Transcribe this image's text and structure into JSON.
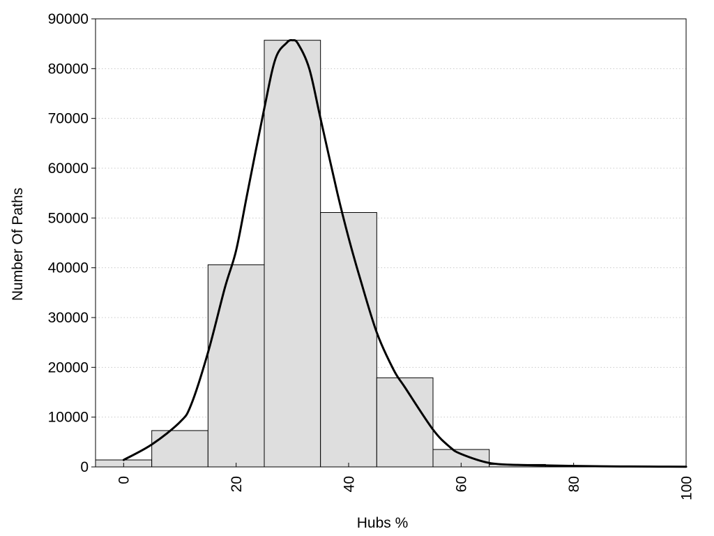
{
  "chart_data": {
    "type": "bar",
    "title": "",
    "xlabel": "Hubs %",
    "ylabel": "Number Of Paths",
    "xlim": [
      -5,
      100
    ],
    "ylim": [
      0,
      90000
    ],
    "grid": true,
    "x_ticks": [
      "0",
      "20",
      "40",
      "60",
      "80",
      "100"
    ],
    "y_ticks": [
      "0",
      "10000",
      "20000",
      "30000",
      "40000",
      "50000",
      "60000",
      "70000",
      "80000",
      "90000"
    ],
    "bins": [
      {
        "start": -5,
        "end": 5,
        "value": 1400
      },
      {
        "start": 5,
        "end": 15,
        "value": 7300
      },
      {
        "start": 15,
        "end": 25,
        "value": 40600
      },
      {
        "start": 25,
        "end": 35,
        "value": 85700
      },
      {
        "start": 35,
        "end": 45,
        "value": 51100
      },
      {
        "start": 45,
        "end": 55,
        "value": 17900
      },
      {
        "start": 55,
        "end": 65,
        "value": 3500
      },
      {
        "start": 65,
        "end": 75,
        "value": 500
      },
      {
        "start": 75,
        "end": 85,
        "value": 200
      },
      {
        "start": 85,
        "end": 95,
        "value": 80
      },
      {
        "start": 95,
        "end": 105,
        "value": 40
      }
    ],
    "density_curve": {
      "x": [
        0,
        5,
        10,
        12,
        15,
        18,
        20,
        22,
        25,
        27,
        29,
        30,
        31,
        33,
        35,
        38,
        40,
        42,
        45,
        48,
        50,
        55,
        58,
        60,
        65,
        70,
        75,
        80,
        85,
        90,
        95,
        100
      ],
      "y": [
        1400,
        4500,
        9000,
        12500,
        23000,
        36000,
        43500,
        55000,
        72000,
        82000,
        85200,
        85700,
        85000,
        80000,
        70000,
        55000,
        46000,
        38000,
        27000,
        19500,
        16000,
        7500,
        4000,
        2600,
        800,
        400,
        300,
        200,
        120,
        80,
        60,
        40
      ]
    },
    "colors": {
      "bar_fill": "#dedede",
      "bar_stroke": "#000000",
      "curve": "#000000",
      "grid": "#c8c8c8"
    }
  }
}
